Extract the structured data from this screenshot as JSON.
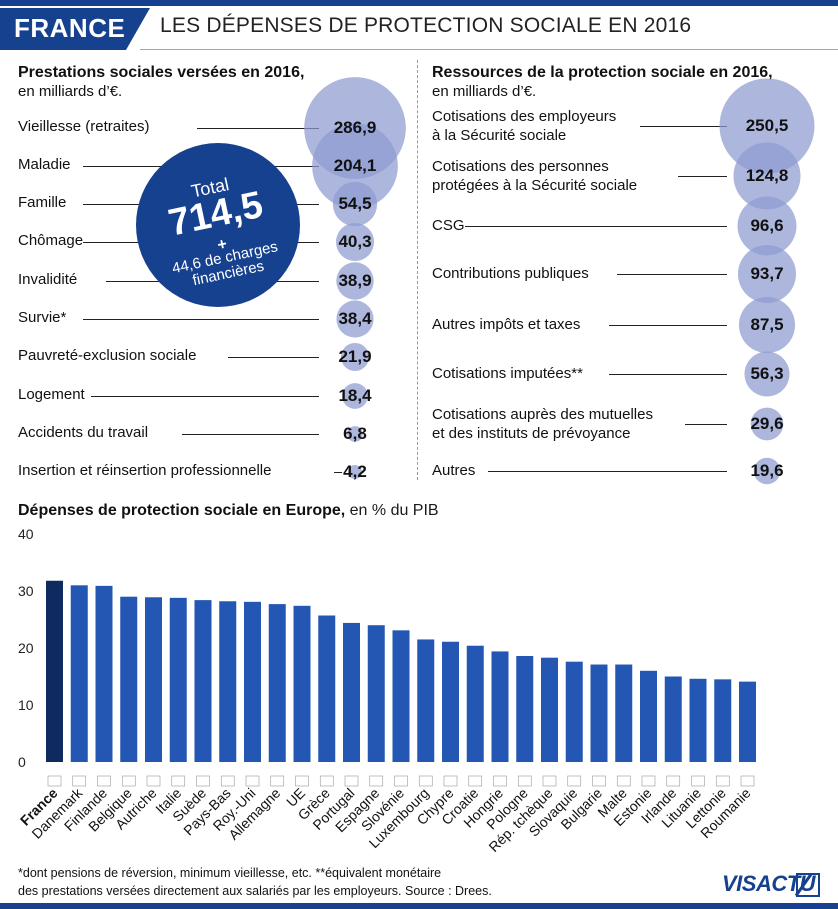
{
  "header": {
    "country": "FRANCE",
    "title": "LES DÉPENSES DE PROTECTION SOCIALE EN 2016"
  },
  "prestations": {
    "title": "Prestations sociales versées en 2016,",
    "subtitle": "en milliards d’€.",
    "total_label": "Total",
    "total_value": "714,5",
    "total_plus": "+",
    "total_extra": "44,6 de charges financières",
    "items": [
      {
        "label": "Vieillesse (retraites)",
        "value": 286.9,
        "display": "286,9"
      },
      {
        "label": "Maladie",
        "value": 204.1,
        "display": "204,1"
      },
      {
        "label": "Famille",
        "value": 54.5,
        "display": "54,5"
      },
      {
        "label": "Chômage",
        "value": 40.3,
        "display": "40,3"
      },
      {
        "label": "Invalidité",
        "value": 38.9,
        "display": "38,9"
      },
      {
        "label": "Survie*",
        "value": 38.4,
        "display": "38,4"
      },
      {
        "label": "Pauvreté-exclusion sociale",
        "value": 21.9,
        "display": "21,9"
      },
      {
        "label": "Logement",
        "value": 18.4,
        "display": "18,4"
      },
      {
        "label": "Accidents du travail",
        "value": 6.8,
        "display": "6,8"
      },
      {
        "label": "Insertion et réinsertion professionnelle",
        "value": 4.2,
        "display": "4,2"
      }
    ]
  },
  "ressources": {
    "title": "Ressources de la protection sociale en 2016,",
    "subtitle": "en milliards d’€.",
    "items": [
      {
        "label": [
          "Cotisations des employeurs",
          "à la Sécurité sociale"
        ],
        "value": 250.5,
        "display": "250,5"
      },
      {
        "label": [
          "Cotisations des personnes",
          "protégées à la Sécurité sociale"
        ],
        "value": 124.8,
        "display": "124,8"
      },
      {
        "label": [
          "CSG"
        ],
        "value": 96.6,
        "display": "96,6"
      },
      {
        "label": [
          "Contributions publiques"
        ],
        "value": 93.7,
        "display": "93,7"
      },
      {
        "label": [
          "Autres impôts et taxes"
        ],
        "value": 87.5,
        "display": "87,5"
      },
      {
        "label": [
          "Cotisations imputées**"
        ],
        "value": 56.3,
        "display": "56,3"
      },
      {
        "label": [
          "Cotisations auprès des mutuelles",
          "et des instituts de prévoyance"
        ],
        "value": 29.6,
        "display": "29,6"
      },
      {
        "label": [
          "Autres"
        ],
        "value": 19.6,
        "display": "19,6"
      }
    ]
  },
  "europe": {
    "title": "Dépenses de protection sociale en Europe,",
    "subtitle": " en % du PIB"
  },
  "chart_data": {
    "type": "bar",
    "title": "Dépenses de protection sociale en Europe, en % du PIB",
    "ylim": [
      0,
      40
    ],
    "yticks": [
      0,
      10,
      20,
      30,
      40
    ],
    "grid": false,
    "categories": [
      "France",
      "Danemark",
      "Finlande",
      "Belgique",
      "Autriche",
      "Italie",
      "Suède",
      "Pays-Bas",
      "Roy.-Uni",
      "Allemagne",
      "UE",
      "Grèce",
      "Portugal",
      "Espagne",
      "Slovénie",
      "Luxembourg",
      "Chypre",
      "Croatie",
      "Hongrie",
      "Pologne",
      "Rép. tchèque",
      "Slovaquie",
      "Bulgarie",
      "Malte",
      "Estonie",
      "Irlande",
      "Lituanie",
      "Lettonie",
      "Roumanie"
    ],
    "values": [
      31.8,
      31.0,
      30.9,
      29.0,
      28.9,
      28.8,
      28.4,
      28.2,
      28.1,
      27.7,
      27.4,
      25.7,
      24.4,
      24.0,
      23.1,
      21.5,
      21.1,
      20.4,
      19.4,
      18.6,
      18.3,
      17.6,
      17.1,
      17.1,
      16.0,
      15.0,
      14.6,
      14.5,
      14.1
    ],
    "highlight_color": "#0f2a5e",
    "bar_color": "#2357b3"
  },
  "footnote": {
    "line1": "*dont pensions de réversion, minimum vieillesse, etc. **équivalent monétaire",
    "line2": "des prestations versées directement aux salariés par les employeurs. Source : Drees."
  },
  "logo": "VISACTU",
  "colors": {
    "brand": "#16418f",
    "bubble": "#8e9bd0"
  }
}
